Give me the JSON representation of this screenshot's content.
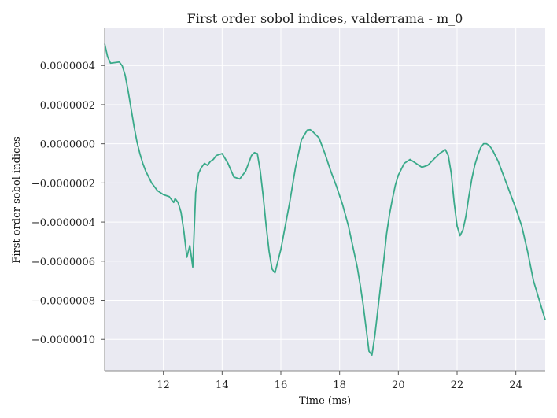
{
  "chart_data": {
    "type": "line",
    "title": "First order sobol indices, valderrama - m_0",
    "xlabel": "Time (ms)",
    "ylabel": "First order sobol indices",
    "xlim": [
      10.0,
      25.0
    ],
    "ylim": [
      -1.16e-06,
      5.9e-07
    ],
    "grid": true,
    "xticks": [
      12,
      14,
      16,
      18,
      20,
      22,
      24
    ],
    "xtick_labels": [
      "12",
      "14",
      "16",
      "18",
      "20",
      "22",
      "24"
    ],
    "yticks": [
      4e-07,
      2e-07,
      0.0,
      -2e-07,
      -4e-07,
      -6e-07,
      -8e-07,
      -1e-06
    ],
    "ytick_labels": [
      "0.0000004",
      "0.0000002",
      "0.0000000",
      "−0.0000002",
      "−0.0000004",
      "−0.0000006",
      "−0.0000008",
      "−0.0000010"
    ],
    "colors": {
      "line": "#3aaa8a",
      "plot_bg": "#eaeaf2",
      "grid": "#ffffff"
    },
    "series": [
      {
        "x": [
          10.0,
          10.1,
          10.2,
          10.35,
          10.5,
          10.6,
          10.7,
          10.8,
          10.9,
          11.0,
          11.1,
          11.2,
          11.3,
          11.4,
          11.6,
          11.8,
          12.0,
          12.2,
          12.3,
          12.35,
          12.4,
          12.45,
          12.5,
          12.6,
          12.7,
          12.8,
          12.9,
          13.0,
          13.1,
          13.2,
          13.3,
          13.4,
          13.5,
          13.6,
          13.7,
          13.8,
          14.0,
          14.2,
          14.4,
          14.6,
          14.8,
          15.0,
          15.1,
          15.2,
          15.3,
          15.4,
          15.5,
          15.6,
          15.7,
          15.8,
          15.9,
          16.0,
          16.1,
          16.2,
          16.3,
          16.5,
          16.7,
          16.9,
          17.0,
          17.1,
          17.3,
          17.5,
          17.7,
          17.9,
          18.1,
          18.3,
          18.5,
          18.6,
          18.7,
          18.8,
          18.9,
          19.0,
          19.1,
          19.2,
          19.3,
          19.4,
          19.5,
          19.6,
          19.7,
          19.8,
          19.9,
          20.0,
          20.2,
          20.4,
          20.6,
          20.8,
          21.0,
          21.2,
          21.4,
          21.5,
          21.6,
          21.7,
          21.8,
          21.9,
          22.0,
          22.1,
          22.2,
          22.3,
          22.4,
          22.5,
          22.6,
          22.7,
          22.8,
          22.9,
          23.0,
          23.1,
          23.2,
          23.3,
          23.4,
          23.5,
          23.6,
          23.7,
          23.8,
          23.9,
          24.0,
          24.2,
          24.4,
          24.6,
          24.8,
          25.0
        ],
        "y": [
          5.12e-07,
          4.45e-07,
          4.12e-07,
          4.15e-07,
          4.18e-07,
          3.98e-07,
          3.5e-07,
          2.7e-07,
          1.8e-07,
          9e-08,
          1e-08,
          -5e-08,
          -1e-07,
          -1.4e-07,
          -2e-07,
          -2.4e-07,
          -2.6e-07,
          -2.7e-07,
          -2.9e-07,
          -3e-07,
          -2.8e-07,
          -2.9e-07,
          -3e-07,
          -3.5e-07,
          -4.5e-07,
          -5.8e-07,
          -5.2e-07,
          -6.3e-07,
          -2.5e-07,
          -1.5e-07,
          -1.2e-07,
          -1e-07,
          -1.1e-07,
          -9e-08,
          -8e-08,
          -6e-08,
          -5e-08,
          -1e-07,
          -1.7e-07,
          -1.8e-07,
          -1.4e-07,
          -6e-08,
          -4.5e-08,
          -5e-08,
          -1.4e-07,
          -2.7e-07,
          -4.2e-07,
          -5.5e-07,
          -6.4e-07,
          -6.6e-07,
          -6e-07,
          -5.4e-07,
          -4.6e-07,
          -3.8e-07,
          -3e-07,
          -1.2e-07,
          2e-08,
          7e-08,
          7.2e-08,
          6e-08,
          3e-08,
          -5e-08,
          -1.4e-07,
          -2.2e-07,
          -3.1e-07,
          -4.2e-07,
          -5.6e-07,
          -6.3e-07,
          -7.2e-07,
          -8.2e-07,
          -9.4e-07,
          -1.06e-06,
          -1.08e-06,
          -9.8e-07,
          -8.5e-07,
          -7.2e-07,
          -6e-07,
          -4.6e-07,
          -3.6e-07,
          -2.8e-07,
          -2.1e-07,
          -1.6e-07,
          -1e-07,
          -8e-08,
          -1e-07,
          -1.2e-07,
          -1.1e-07,
          -8e-08,
          -5e-08,
          -4e-08,
          -3e-08,
          -6e-08,
          -1.5e-07,
          -3e-07,
          -4.2e-07,
          -4.7e-07,
          -4.4e-07,
          -3.7e-07,
          -2.7e-07,
          -1.8e-07,
          -1.1e-07,
          -6e-08,
          -2e-08,
          0.0,
          0.0,
          -1e-08,
          -3e-08,
          -6e-08,
          -9e-08,
          -1.3e-07,
          -1.7e-07,
          -2.1e-07,
          -2.5e-07,
          -2.9e-07,
          -3.3e-07,
          -4.2e-07,
          -5.5e-07,
          -7e-07,
          -8e-07,
          -9e-07
        ]
      }
    ]
  }
}
